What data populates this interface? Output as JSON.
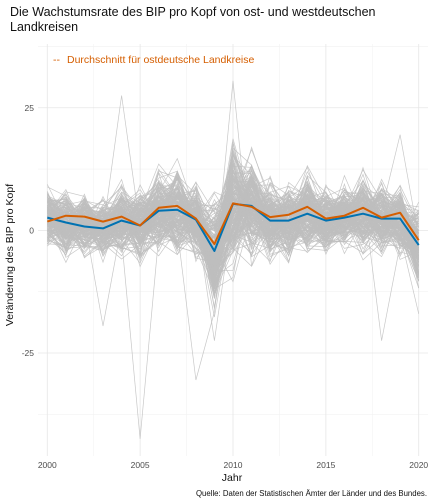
{
  "chart_data": {
    "type": "line",
    "title_line1": "Die Wachstumsrate des BIP pro Kopf von ost- und westdeutschen",
    "title_line2": "Landkreisen",
    "xlabel": "Jahr",
    "ylabel": "Veränderung des BIP pro Kopf",
    "caption": "Quelle: Daten der Statistischen Ämter der Länder und des Bundes.",
    "xlim": [
      1999.5,
      2020.5
    ],
    "ylim": [
      -46,
      38
    ],
    "x_ticks": [
      2000,
      2005,
      2010,
      2015,
      2020
    ],
    "x_tick_labels": [
      "2000",
      "2005",
      "2010",
      "2015",
      "2020"
    ],
    "y_ticks": [
      -25,
      0,
      25
    ],
    "y_tick_labels": [
      "-25",
      "0",
      "25"
    ],
    "grid": true,
    "legend": {
      "position": "top-left",
      "entries": [
        {
          "label": "Durchschnitt für ostdeutsche Landkreise",
          "symbol": "--",
          "color": "#d55e00"
        }
      ]
    },
    "x": [
      2000,
      2001,
      2002,
      2003,
      2004,
      2005,
      2006,
      2007,
      2008,
      2009,
      2010,
      2011,
      2012,
      2013,
      2014,
      2015,
      2016,
      2017,
      2018,
      2019,
      2020
    ],
    "series": [
      {
        "color": "#d55e00",
        "values": [
          1.8,
          3.0,
          2.8,
          1.8,
          2.8,
          1.0,
          4.6,
          5.0,
          2.4,
          -2.8,
          5.5,
          4.8,
          2.7,
          3.2,
          4.8,
          2.4,
          3.0,
          4.6,
          2.6,
          3.6,
          -2.0
        ]
      },
      {
        "color": "#0072b2",
        "values": [
          2.6,
          1.6,
          0.8,
          0.4,
          2.0,
          1.0,
          4.0,
          4.2,
          2.2,
          -4.2,
          5.4,
          5.0,
          2.0,
          2.0,
          3.4,
          2.0,
          2.6,
          3.4,
          2.4,
          2.4,
          -3.0
        ]
      }
    ],
    "background_lines": {
      "color": "#bebebe",
      "count": 220,
      "band_halfwidth": [
        4.5,
        5.5,
        5.0,
        4.8,
        6.0,
        5.5,
        7.0,
        7.5,
        6.0,
        9.0,
        11.0,
        8.5,
        6.0,
        6.0,
        6.5,
        5.5,
        5.5,
        6.0,
        5.5,
        6.0,
        7.0
      ],
      "extremes": [
        {
          "x": 2004,
          "y": 27.5
        },
        {
          "x": 2005,
          "y": -42.5
        },
        {
          "x": 2008,
          "y": -30.5
        },
        {
          "x": 2009,
          "y": -22.5
        },
        {
          "x": 2010,
          "y": 30.5
        },
        {
          "x": 2003,
          "y": -19.5
        },
        {
          "x": 2018,
          "y": -22.5
        },
        {
          "x": 2019,
          "y": 19.5
        },
        {
          "x": 2020,
          "y": -17.0
        }
      ]
    }
  }
}
